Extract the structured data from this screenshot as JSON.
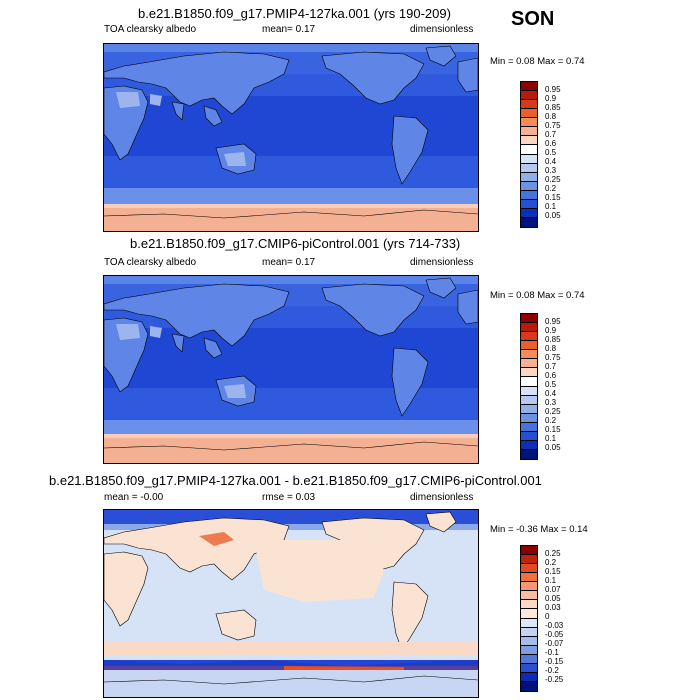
{
  "season": "SON",
  "panels": [
    {
      "title": "b.e21.B1850.f09_g17.PMIP4-127ka.001 (yrs 190-209)",
      "variable": "TOA clearsky albedo",
      "stat_text": "mean=  0.17",
      "units": "dimensionless",
      "minmax": "Min =  0.08 Max =  0.74",
      "colorbar_labels": [
        "0.95",
        "0.9",
        "0.85",
        "0.8",
        "0.75",
        "0.7",
        "0.6",
        "0.5",
        "0.4",
        "0.3",
        "0.25",
        "0.2",
        "0.15",
        "0.1",
        "0.05"
      ],
      "colorbar_colors": [
        "#8b0000",
        "#b71c0a",
        "#d73a1a",
        "#e8602e",
        "#f48c5a",
        "#f8b190",
        "#fbd5c2",
        "#ffffff",
        "#d6e2f7",
        "#b3c9f1",
        "#8fb0ea",
        "#6b93e3",
        "#4771dc",
        "#2550d4",
        "#0b2fb8",
        "#00137a"
      ],
      "colors": {
        "land": "#5a84e8",
        "ocean": "#2c55dd",
        "ocean_deep": "#1a3fcf",
        "ice": "#f3b093"
      }
    },
    {
      "title": "b.e21.B1850.f09_g17.CMIP6-piControl.001 (yrs 714-733)",
      "variable": "TOA clearsky albedo",
      "stat_text": "mean=  0.17",
      "units": "dimensionless",
      "minmax": "Min =  0.08 Max =  0.74",
      "colorbar_labels": [
        "0.95",
        "0.9",
        "0.85",
        "0.8",
        "0.75",
        "0.7",
        "0.6",
        "0.5",
        "0.4",
        "0.3",
        "0.25",
        "0.2",
        "0.15",
        "0.1",
        "0.05"
      ],
      "colorbar_colors": [
        "#8b0000",
        "#b71c0a",
        "#d73a1a",
        "#e8602e",
        "#f48c5a",
        "#f8b190",
        "#fbd5c2",
        "#ffffff",
        "#d6e2f7",
        "#b3c9f1",
        "#8fb0ea",
        "#6b93e3",
        "#4771dc",
        "#2550d4",
        "#0b2fb8",
        "#00137a"
      ],
      "colors": {
        "land": "#5a84e8",
        "ocean": "#2c55dd",
        "ocean_deep": "#1a3fcf",
        "ice": "#f3b093"
      }
    },
    {
      "title": "b.e21.B1850.f09_g17.PMIP4-127ka.001 - b.e21.B1850.f09_g17.CMIP6-piControl.001",
      "stat_text": "mean =  -0.00",
      "rmse_text": "rmse =  0.03",
      "units": "dimensionless",
      "minmax": "Min =  -0.36 Max =  0.14",
      "colorbar_labels": [
        "0.25",
        "0.2",
        "0.15",
        "0.1",
        "0.07",
        "0.05",
        "0.03",
        "0",
        "-0.03",
        "-0.05",
        "-0.07",
        "-0.1",
        "-0.15",
        "-0.2",
        "-0.25"
      ],
      "colorbar_colors": [
        "#8b0000",
        "#c0230d",
        "#e04a22",
        "#ef7040",
        "#f59873",
        "#f9bca0",
        "#fbd8c8",
        "#fde8dc",
        "#dde7f7",
        "#c3d4f2",
        "#a4bdec",
        "#7f9fe4",
        "#5677da",
        "#2c4fd1",
        "#0d2bb0",
        "#00127a"
      ],
      "colors": {
        "base_land": "#fbe3d3",
        "base_ocean": "#d6e2f5",
        "arctic": "#2040d0",
        "antarctic_band": "#2244d8",
        "warm_band": "#e84e20"
      }
    }
  ]
}
